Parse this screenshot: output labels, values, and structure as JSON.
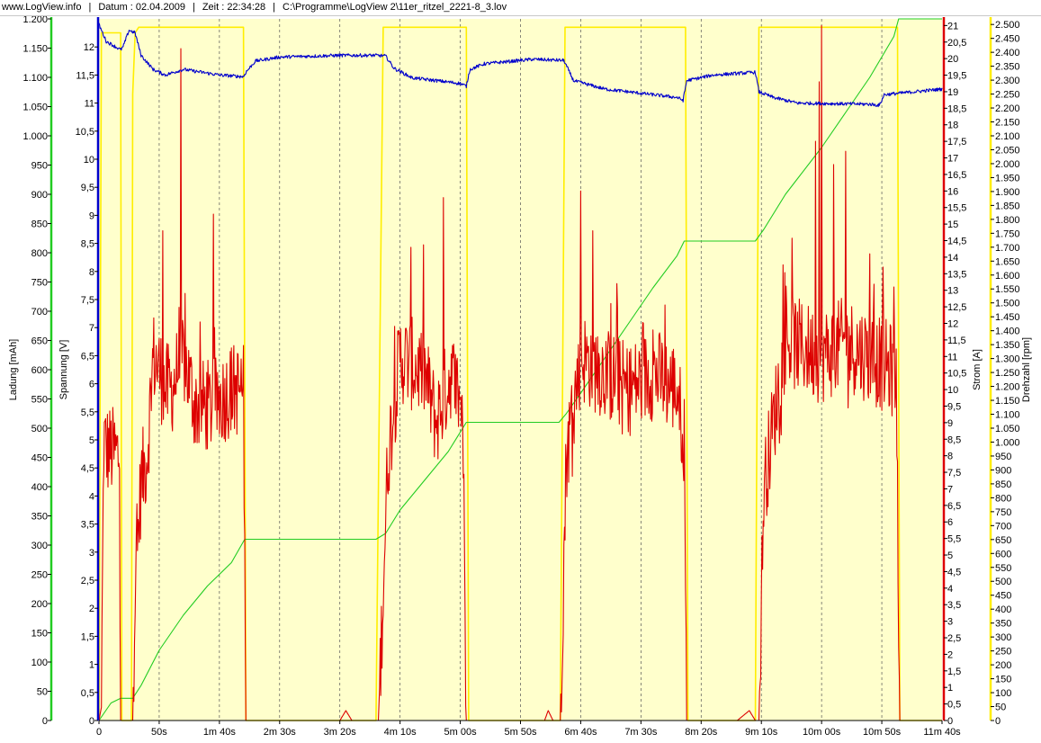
{
  "header": {
    "site": "www.LogView.info",
    "date": "Datum : 02.04.2009",
    "time": "Zeit : 22:34:28",
    "file": "C:\\Programme\\LogView 2\\11er_ritzel_2221-8_3.lov"
  },
  "colors": {
    "plot_background": "#ffffcc",
    "voltage": "#0000cc",
    "current": "#dd0000",
    "charge": "#22cc22",
    "rpm": "#ffee00",
    "grid": "#555555"
  },
  "chart_data": {
    "type": "line",
    "x_unit": "seconds",
    "xlim": [
      0,
      700
    ],
    "x_ticks": [
      {
        "value": 0,
        "label": "0"
      },
      {
        "value": 50,
        "label": "50s"
      },
      {
        "value": 100,
        "label": "1m 40s"
      },
      {
        "value": 150,
        "label": "2m 30s"
      },
      {
        "value": 200,
        "label": "3m 20s"
      },
      {
        "value": 250,
        "label": "4m 10s"
      },
      {
        "value": 300,
        "label": "5m 00s"
      },
      {
        "value": 350,
        "label": "5m 50s"
      },
      {
        "value": 400,
        "label": "6m 40s"
      },
      {
        "value": 450,
        "label": "7m 30s"
      },
      {
        "value": 500,
        "label": "8m 20s"
      },
      {
        "value": 550,
        "label": "9m 10s"
      },
      {
        "value": 600,
        "label": "10m 00s"
      },
      {
        "value": 650,
        "label": "10m 50s"
      },
      {
        "value": 700,
        "label": "11m 40s"
      }
    ],
    "axes": {
      "ladung": {
        "label": "Ladung [mAh]",
        "min": 0,
        "max": 1200,
        "side": "left",
        "color": "#22cc22",
        "tick_labels": [
          "0",
          "50",
          "100",
          "150",
          "200",
          "250",
          "300",
          "350",
          "400",
          "450",
          "500",
          "550",
          "600",
          "650",
          "700",
          "750",
          "800",
          "850",
          "900",
          "950",
          "1.000",
          "1.050",
          "1.100",
          "1.150",
          "1.200"
        ]
      },
      "spannung": {
        "label": "Spannung [V]",
        "min": 0,
        "max": 12.5,
        "side": "left",
        "color": "#0000cc",
        "tick_labels": [
          "0",
          "0,5",
          "1",
          "1,5",
          "2",
          "2,5",
          "3",
          "3,5",
          "4",
          "4,5",
          "5",
          "5,5",
          "6",
          "6,5",
          "7",
          "7,5",
          "8",
          "8,5",
          "9",
          "9,5",
          "10",
          "10,5",
          "11",
          "11,5",
          "12"
        ]
      },
      "strom": {
        "label": "Strom [A]",
        "min": 0,
        "max": 21.2,
        "side": "right",
        "color": "#dd0000",
        "tick_labels": [
          "0",
          "0,5",
          "1",
          "1,5",
          "2",
          "2,5",
          "3",
          "3,5",
          "4",
          "4,5",
          "5",
          "5,5",
          "6",
          "6,5",
          "7",
          "7,5",
          "8",
          "8,5",
          "9",
          "9,5",
          "10",
          "10,5",
          "11",
          "11,5",
          "12",
          "12,5",
          "13",
          "13,5",
          "14",
          "14,5",
          "15",
          "15,5",
          "16",
          "16,5",
          "17",
          "17,5",
          "18",
          "18,5",
          "19",
          "19,5",
          "20",
          "20,5",
          "21"
        ]
      },
      "drehzahl": {
        "label": "Drehzahl [rpm]",
        "min": 0,
        "max": 2520,
        "side": "right",
        "color": "#ffee00",
        "tick_labels": [
          "0",
          "50",
          "100",
          "150",
          "200",
          "250",
          "300",
          "350",
          "400",
          "450",
          "500",
          "550",
          "600",
          "650",
          "700",
          "750",
          "800",
          "850",
          "900",
          "950",
          "1.000",
          "1.050",
          "1.100",
          "1.150",
          "1.200",
          "1.250",
          "1.300",
          "1.350",
          "1.400",
          "1.450",
          "1.500",
          "1.550",
          "1.600",
          "1.650",
          "1.700",
          "1.750",
          "1.800",
          "1.850",
          "1.900",
          "1.950",
          "2.000",
          "2.050",
          "2.100",
          "2.150",
          "2.200",
          "2.250",
          "2.300",
          "2.350",
          "2.400",
          "2.450",
          "2.500"
        ]
      }
    },
    "series": [
      {
        "name": "Spannung",
        "axis": "spannung",
        "color": "#0000cc",
        "noise": 0.03,
        "points": [
          [
            0,
            12.4
          ],
          [
            6,
            12.1
          ],
          [
            18,
            11.95
          ],
          [
            20,
            12.0
          ],
          [
            25,
            12.3
          ],
          [
            30,
            12.25
          ],
          [
            35,
            11.85
          ],
          [
            45,
            11.6
          ],
          [
            55,
            11.5
          ],
          [
            70,
            11.6
          ],
          [
            100,
            11.5
          ],
          [
            120,
            11.47
          ],
          [
            122,
            11.55
          ],
          [
            130,
            11.75
          ],
          [
            150,
            11.82
          ],
          [
            200,
            11.85
          ],
          [
            230,
            11.85
          ],
          [
            238,
            11.84
          ],
          [
            245,
            11.62
          ],
          [
            260,
            11.45
          ],
          [
            300,
            11.35
          ],
          [
            305,
            11.3
          ],
          [
            308,
            11.6
          ],
          [
            320,
            11.7
          ],
          [
            360,
            11.78
          ],
          [
            386,
            11.76
          ],
          [
            394,
            11.4
          ],
          [
            420,
            11.25
          ],
          [
            480,
            11.1
          ],
          [
            485,
            11.05
          ],
          [
            488,
            11.4
          ],
          [
            510,
            11.5
          ],
          [
            545,
            11.55
          ],
          [
            548,
            11.2
          ],
          [
            560,
            11.1
          ],
          [
            580,
            11.0
          ],
          [
            640,
            10.98
          ],
          [
            648,
            10.96
          ],
          [
            652,
            11.15
          ],
          [
            700,
            11.25
          ]
        ]
      },
      {
        "name": "Strom",
        "axis": "strom",
        "color": "#dd0000",
        "points": [
          [
            0,
            0
          ],
          [
            2,
            0.4
          ],
          [
            4,
            8.5
          ],
          [
            6,
            8.2
          ],
          [
            17,
            8.0
          ],
          [
            18,
            0
          ],
          [
            28,
            0
          ],
          [
            30,
            4
          ],
          [
            35,
            7.2
          ],
          [
            40,
            8
          ],
          [
            45,
            11
          ],
          [
            50,
            10.6
          ],
          [
            55,
            10.0
          ],
          [
            60,
            10
          ],
          [
            70,
            11
          ],
          [
            80,
            9.5
          ],
          [
            95,
            9.5
          ],
          [
            110,
            10
          ],
          [
            120,
            10
          ],
          [
            122,
            0
          ],
          [
            200,
            0
          ],
          [
            205,
            0.3
          ],
          [
            210,
            0
          ],
          [
            232,
            0
          ],
          [
            240,
            8
          ],
          [
            250,
            11
          ],
          [
            270,
            10.5
          ],
          [
            280,
            9
          ],
          [
            292,
            10.5
          ],
          [
            302,
            9.5
          ],
          [
            305,
            0
          ],
          [
            370,
            0
          ],
          [
            373,
            0.3
          ],
          [
            377,
            0
          ],
          [
            383,
            0
          ],
          [
            388,
            8
          ],
          [
            400,
            11
          ],
          [
            420,
            10.5
          ],
          [
            440,
            10
          ],
          [
            460,
            10.5
          ],
          [
            480,
            10
          ],
          [
            486,
            8.5
          ],
          [
            488,
            0
          ],
          [
            530,
            0
          ],
          [
            540,
            0.3
          ],
          [
            545,
            0
          ],
          [
            548,
            0
          ],
          [
            552,
            7
          ],
          [
            570,
            11.5
          ],
          [
            600,
            11
          ],
          [
            620,
            11.4
          ],
          [
            640,
            11
          ],
          [
            662,
            10.5
          ],
          [
            665,
            0
          ],
          [
            700,
            0
          ]
        ],
        "peaks": [
          [
            53,
            14.8
          ],
          [
            68,
            20.3
          ],
          [
            95,
            15.3
          ],
          [
            259,
            14.3
          ],
          [
            286,
            15.8
          ],
          [
            400,
            16
          ],
          [
            410,
            14.8
          ],
          [
            425,
            12.6
          ],
          [
            430,
            13.2
          ],
          [
            460,
            11.8
          ],
          [
            595,
            17.5
          ],
          [
            598,
            19.3
          ],
          [
            600,
            21
          ],
          [
            610,
            16.8
          ],
          [
            620,
            17.2
          ],
          [
            640,
            14.1
          ],
          [
            651,
            13.7
          ],
          [
            660,
            13.1
          ]
        ],
        "noise": 0.9
      },
      {
        "name": "Ladung",
        "axis": "ladung",
        "color": "#22cc22",
        "points": [
          [
            0,
            0
          ],
          [
            10,
            30
          ],
          [
            18,
            38
          ],
          [
            28,
            38
          ],
          [
            35,
            60
          ],
          [
            50,
            120
          ],
          [
            70,
            180
          ],
          [
            90,
            230
          ],
          [
            110,
            270
          ],
          [
            121,
            310
          ],
          [
            230,
            310
          ],
          [
            238,
            320
          ],
          [
            250,
            360
          ],
          [
            270,
            410
          ],
          [
            290,
            460
          ],
          [
            305,
            510
          ],
          [
            382,
            510
          ],
          [
            388,
            525
          ],
          [
            400,
            560
          ],
          [
            420,
            620
          ],
          [
            440,
            680
          ],
          [
            460,
            740
          ],
          [
            480,
            795
          ],
          [
            486,
            820
          ],
          [
            545,
            820
          ],
          [
            552,
            840
          ],
          [
            570,
            900
          ],
          [
            600,
            980
          ],
          [
            620,
            1040
          ],
          [
            640,
            1100
          ],
          [
            660,
            1170
          ],
          [
            664,
            1200
          ],
          [
            700,
            1200
          ]
        ]
      },
      {
        "name": "Drehzahl",
        "axis": "drehzahl",
        "color": "#ffee00",
        "points": [
          [
            0,
            0
          ],
          [
            2,
            2470
          ],
          [
            8,
            2470
          ],
          [
            18,
            2470
          ],
          [
            19,
            0
          ],
          [
            27,
            0
          ],
          [
            28,
            2250
          ],
          [
            30,
            2470
          ],
          [
            33,
            2490
          ],
          [
            38,
            2490
          ],
          [
            120,
            2490
          ],
          [
            122,
            0
          ],
          [
            230,
            0
          ],
          [
            236,
            2490
          ],
          [
            305,
            2490
          ],
          [
            307,
            0
          ],
          [
            383,
            0
          ],
          [
            387,
            2490
          ],
          [
            487,
            2490
          ],
          [
            489,
            0
          ],
          [
            545,
            0
          ],
          [
            548,
            2490
          ],
          [
            663,
            2490
          ],
          [
            665,
            0
          ],
          [
            700,
            0
          ]
        ]
      }
    ]
  }
}
